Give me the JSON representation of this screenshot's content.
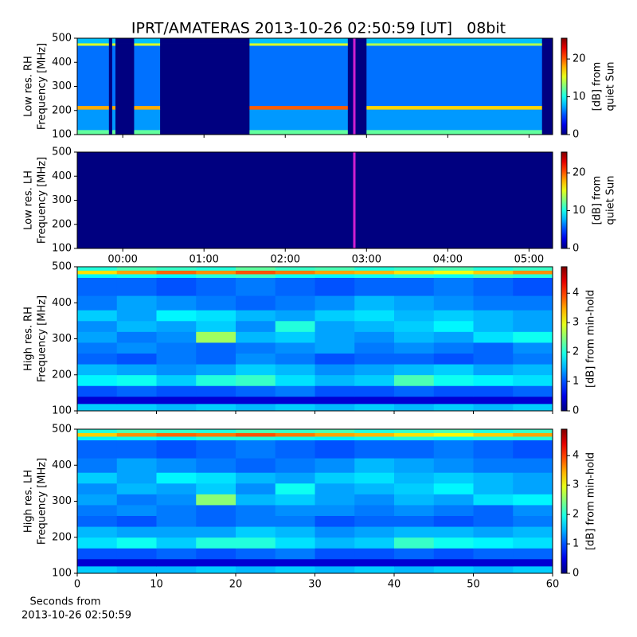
{
  "chart_data": [
    {
      "type": "heatmap",
      "title": "IPRT/AMATERAS 2013-10-26 02:50:59 [UT]   08bit",
      "ylabel": [
        "Low res. RH",
        "Frequency [MHz]"
      ],
      "colorbar_label": [
        "[dB] from",
        "quiet Sun"
      ],
      "colormap": "jet",
      "xlim": [
        -0.56,
        5.29
      ],
      "xticks": [
        0,
        1,
        2,
        3,
        4,
        5
      ],
      "show_xtick_labels": false,
      "ylim": [
        100,
        500
      ],
      "yticks": [
        100,
        200,
        300,
        400,
        500
      ],
      "clim": [
        0,
        25.5
      ],
      "cticks": [
        0,
        10,
        20
      ],
      "x_edges": [
        -0.56,
        -0.17,
        -0.13,
        -0.09,
        0.14,
        0.46,
        1.56,
        2.77,
        3.0,
        5.16,
        5.29
      ],
      "y_edges": [
        100,
        120,
        205,
        220,
        470,
        480,
        500
      ],
      "values": [
        [
          12,
          0,
          12,
          0,
          12,
          0,
          12,
          0,
          12,
          0
        ],
        [
          7,
          0,
          7,
          0,
          7,
          0,
          7,
          0,
          7,
          0
        ],
        [
          18,
          0,
          18,
          0,
          18,
          0,
          20,
          0,
          17,
          0
        ],
        [
          6,
          0,
          6,
          0,
          6,
          0,
          6,
          0,
          6,
          0
        ],
        [
          15,
          0,
          15,
          0,
          15,
          0,
          15,
          0,
          14,
          0
        ],
        [
          8,
          0,
          8,
          0,
          8,
          0,
          8,
          0,
          8,
          0
        ]
      ],
      "marker_x": 2.85,
      "marker_color": "#d020d0"
    },
    {
      "type": "heatmap",
      "ylabel": [
        "Low res. LH",
        "Frequency [MHz]"
      ],
      "colorbar_label": [
        "[dB] from",
        "quiet Sun"
      ],
      "colormap": "jet",
      "xlim": [
        -0.56,
        5.29
      ],
      "xticks": [
        {
          "value": 0,
          "label": "00:00"
        },
        {
          "value": 1,
          "label": "01:00"
        },
        {
          "value": 2,
          "label": "02:00"
        },
        {
          "value": 3,
          "label": "03:00"
        },
        {
          "value": 4,
          "label": "04:00"
        },
        {
          "value": 5,
          "label": "05:00"
        }
      ],
      "show_xtick_labels": true,
      "ylim": [
        100,
        500
      ],
      "yticks": [
        100,
        200,
        300,
        400,
        500
      ],
      "clim": [
        0,
        25.5
      ],
      "cticks": [
        0,
        10,
        20
      ],
      "x_edges": [
        -0.56,
        5.29
      ],
      "y_edges": [
        100,
        500
      ],
      "values": [
        [
          0
        ]
      ],
      "marker_x": 2.85,
      "marker_color": "#d020d0"
    },
    {
      "type": "heatmap",
      "ylabel": [
        "High res. RH",
        "Frequency [MHz]"
      ],
      "colorbar_label": [
        "[dB] from min-hold"
      ],
      "colormap": "jet",
      "xlim": [
        0,
        60
      ],
      "xticks": [
        0,
        10,
        20,
        30,
        40,
        50,
        60
      ],
      "show_xtick_labels": false,
      "ylim": [
        100,
        500
      ],
      "yticks": [
        100,
        200,
        300,
        400,
        500
      ],
      "clim": [
        0,
        4.9
      ],
      "cticks": [
        0,
        1,
        2,
        3,
        4
      ],
      "x_edges": [
        0,
        5,
        10,
        15,
        20,
        25,
        30,
        35,
        40,
        45,
        50,
        55,
        60
      ],
      "y_edges": [
        100,
        120,
        140,
        170,
        200,
        230,
        260,
        290,
        320,
        350,
        380,
        420,
        470,
        480,
        490,
        500
      ],
      "values": [
        [
          1.6,
          1.6,
          1.5,
          1.6,
          1.5,
          1.6,
          1.5,
          1.6,
          1.5,
          1.6,
          1.5,
          1.6
        ],
        [
          0.4,
          0.4,
          0.4,
          0.4,
          0.4,
          0.4,
          0.4,
          0.4,
          0.4,
          0.4,
          0.4,
          0.4
        ],
        [
          1.0,
          1.1,
          1.0,
          1.0,
          1.1,
          1.2,
          1.0,
          1.0,
          1.1,
          1.0,
          1.0,
          1.1
        ],
        [
          1.8,
          1.9,
          1.6,
          2.0,
          2.1,
          1.7,
          1.5,
          1.6,
          2.2,
          1.9,
          1.8,
          1.7
        ],
        [
          1.5,
          1.4,
          1.3,
          1.4,
          1.6,
          1.5,
          1.3,
          1.4,
          1.5,
          1.6,
          1.4,
          1.5
        ],
        [
          1.1,
          1.0,
          1.2,
          1.1,
          1.3,
          1.2,
          1.0,
          1.1,
          1.1,
          1.0,
          1.1,
          1.2
        ],
        [
          1.2,
          1.3,
          1.2,
          1.1,
          1.2,
          1.3,
          1.4,
          1.2,
          1.3,
          1.2,
          1.1,
          1.3
        ],
        [
          1.4,
          1.2,
          1.3,
          2.6,
          1.5,
          1.6,
          1.4,
          1.3,
          1.5,
          1.4,
          1.7,
          1.9
        ],
        [
          1.3,
          1.5,
          1.4,
          1.6,
          1.3,
          2.0,
          1.4,
          1.5,
          1.6,
          1.8,
          1.5,
          1.4
        ],
        [
          1.6,
          1.4,
          1.8,
          1.7,
          1.5,
          1.4,
          1.6,
          1.7,
          1.5,
          1.6,
          1.5,
          1.4
        ],
        [
          1.2,
          1.4,
          1.3,
          1.2,
          1.1,
          1.2,
          1.3,
          1.5,
          1.4,
          1.3,
          1.2,
          1.2
        ],
        [
          1.1,
          1.1,
          1.0,
          1.1,
          1.2,
          1.1,
          1.0,
          1.1,
          1.1,
          1.2,
          1.1,
          1.0
        ],
        [
          1.8,
          1.9,
          1.8,
          2.0,
          2.1,
          1.9,
          1.8,
          1.9,
          2.0,
          1.9,
          2.1,
          2.0
        ],
        [
          3.2,
          3.5,
          3.8,
          3.6,
          3.9,
          3.7,
          3.5,
          3.4,
          3.2,
          3.0,
          3.3,
          3.6
        ],
        [
          2.0,
          2.2,
          2.1,
          2.0,
          2.3,
          2.1,
          2.2,
          2.0,
          2.1,
          2.2,
          2.0,
          2.1
        ]
      ]
    },
    {
      "type": "heatmap",
      "ylabel": [
        "High res. LH",
        "Frequency [MHz]"
      ],
      "colorbar_label": [
        "[dB] from min-hold"
      ],
      "colormap": "jet",
      "xlabel": [
        "Seconds from",
        "2013-10-26 02:50:59"
      ],
      "xlim": [
        0,
        60
      ],
      "xticks": [
        0,
        10,
        20,
        30,
        40,
        50,
        60
      ],
      "show_xtick_labels": true,
      "ylim": [
        100,
        500
      ],
      "yticks": [
        100,
        200,
        300,
        400,
        500
      ],
      "clim": [
        0,
        4.9
      ],
      "cticks": [
        0,
        1,
        2,
        3,
        4
      ],
      "x_edges": [
        0,
        5,
        10,
        15,
        20,
        25,
        30,
        35,
        40,
        45,
        50,
        55,
        60
      ],
      "y_edges": [
        100,
        120,
        140,
        170,
        200,
        230,
        260,
        290,
        320,
        350,
        380,
        420,
        470,
        480,
        490,
        500
      ],
      "values": [
        [
          1.6,
          1.5,
          1.5,
          1.6,
          1.5,
          1.6,
          1.5,
          1.6,
          1.5,
          1.6,
          1.5,
          1.6
        ],
        [
          0.4,
          0.4,
          0.4,
          0.4,
          0.4,
          0.4,
          0.4,
          0.4,
          0.4,
          0.4,
          0.4,
          0.4
        ],
        [
          1.0,
          1.0,
          1.1,
          1.0,
          1.1,
          1.2,
          1.0,
          1.0,
          1.1,
          1.0,
          1.1,
          1.1
        ],
        [
          1.7,
          1.9,
          1.6,
          2.0,
          2.0,
          1.7,
          1.5,
          1.6,
          2.1,
          1.9,
          1.8,
          1.7
        ],
        [
          1.5,
          1.4,
          1.4,
          1.4,
          1.6,
          1.5,
          1.3,
          1.4,
          1.5,
          1.5,
          1.4,
          1.5
        ],
        [
          1.1,
          1.0,
          1.2,
          1.1,
          1.2,
          1.2,
          1.0,
          1.1,
          1.1,
          1.0,
          1.1,
          1.2
        ],
        [
          1.2,
          1.3,
          1.2,
          1.1,
          1.2,
          1.3,
          1.3,
          1.2,
          1.3,
          1.2,
          1.1,
          1.3
        ],
        [
          1.4,
          1.2,
          1.3,
          2.5,
          1.5,
          1.6,
          1.4,
          1.3,
          1.5,
          1.4,
          1.7,
          1.8
        ],
        [
          1.3,
          1.5,
          1.4,
          1.6,
          1.3,
          1.9,
          1.4,
          1.5,
          1.6,
          1.8,
          1.5,
          1.4
        ],
        [
          1.6,
          1.4,
          1.8,
          1.7,
          1.5,
          1.4,
          1.6,
          1.7,
          1.5,
          1.6,
          1.5,
          1.4
        ],
        [
          1.2,
          1.4,
          1.3,
          1.2,
          1.1,
          1.2,
          1.3,
          1.5,
          1.4,
          1.3,
          1.2,
          1.2
        ],
        [
          1.1,
          1.1,
          1.0,
          1.1,
          1.2,
          1.1,
          1.0,
          1.1,
          1.1,
          1.2,
          1.1,
          1.0
        ],
        [
          1.8,
          1.9,
          1.8,
          2.0,
          2.0,
          1.9,
          1.8,
          1.9,
          2.0,
          1.9,
          2.0,
          2.0
        ],
        [
          3.3,
          3.6,
          3.8,
          3.7,
          3.9,
          3.7,
          3.5,
          3.4,
          3.2,
          3.1,
          3.3,
          3.5
        ],
        [
          2.0,
          2.2,
          2.1,
          2.0,
          2.2,
          2.1,
          2.2,
          2.0,
          2.1,
          2.2,
          2.0,
          2.1
        ]
      ]
    }
  ]
}
